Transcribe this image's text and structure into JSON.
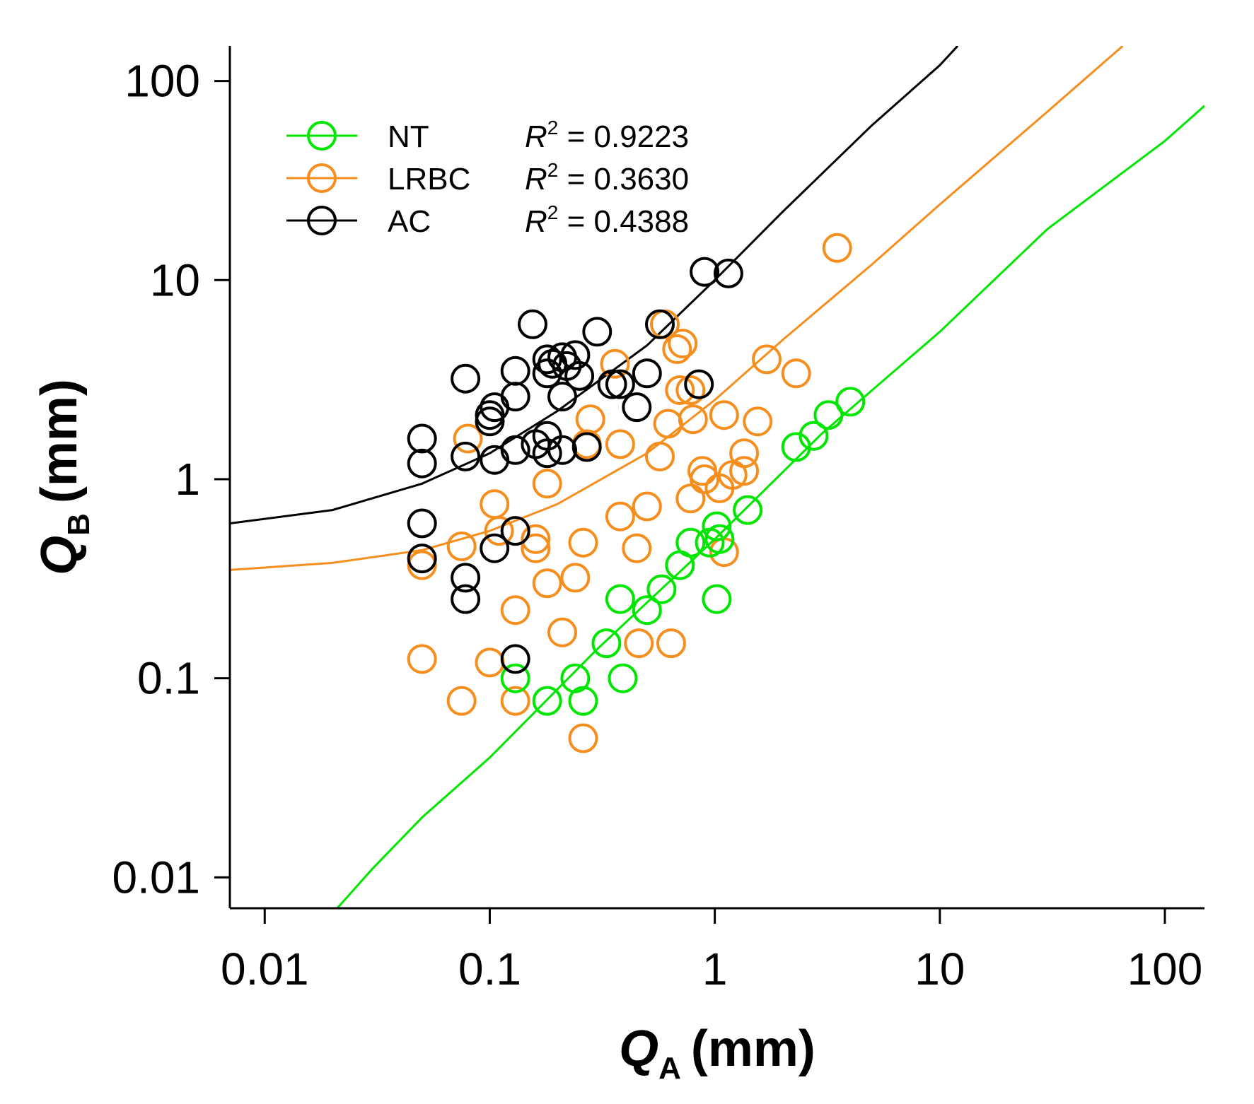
{
  "chart_data": {
    "type": "scatter",
    "scale": "log-log",
    "xlabel": {
      "main": "Q",
      "sub": "A",
      "unit": "(mm)"
    },
    "ylabel": {
      "main": "Q",
      "sub": "B",
      "unit": "(mm)"
    },
    "xlim": [
      0.007,
      150
    ],
    "ylim": [
      0.007,
      150
    ],
    "x_ticks": [
      {
        "value": 0.01,
        "label": "0.01"
      },
      {
        "value": 0.1,
        "label": "0.1"
      },
      {
        "value": 1,
        "label": "1"
      },
      {
        "value": 10,
        "label": "10"
      },
      {
        "value": 100,
        "label": "100"
      }
    ],
    "y_ticks": [
      {
        "value": 0.01,
        "label": "0.01"
      },
      {
        "value": 0.1,
        "label": "0.1"
      },
      {
        "value": 1,
        "label": "1"
      },
      {
        "value": 10,
        "label": "10"
      },
      {
        "value": 100,
        "label": "100"
      }
    ],
    "legend_position": "top-left",
    "series": [
      {
        "name": "NT",
        "color": "#00e600",
        "r2_prefix": "R",
        "r2_sup": "2",
        "r2_value": " = 0.9223",
        "fit_curve": [
          [
            0.021,
            0.007
          ],
          [
            0.03,
            0.011
          ],
          [
            0.05,
            0.02
          ],
          [
            0.1,
            0.04
          ],
          [
            0.3,
            0.14
          ],
          [
            1,
            0.5
          ],
          [
            3,
            1.7
          ],
          [
            10,
            5.5
          ],
          [
            30,
            18
          ],
          [
            100,
            50
          ],
          [
            150,
            75
          ]
        ],
        "points": [
          [
            0.13,
            0.1
          ],
          [
            0.18,
            0.077
          ],
          [
            0.24,
            0.1
          ],
          [
            0.26,
            0.077
          ],
          [
            0.33,
            0.15
          ],
          [
            0.38,
            0.25
          ],
          [
            0.39,
            0.1
          ],
          [
            0.5,
            0.22
          ],
          [
            0.58,
            0.28
          ],
          [
            0.7,
            0.37
          ],
          [
            0.78,
            0.48
          ],
          [
            0.95,
            0.48
          ],
          [
            1.02,
            0.58
          ],
          [
            1.05,
            0.5
          ],
          [
            1.02,
            0.25
          ],
          [
            1.4,
            0.7
          ],
          [
            2.3,
            1.45
          ],
          [
            2.75,
            1.65
          ],
          [
            3.2,
            2.1
          ],
          [
            4.0,
            2.45
          ]
        ]
      },
      {
        "name": "LRBC",
        "color": "#f68e1e",
        "r2_prefix": "R",
        "r2_sup": "2",
        "r2_value": " = 0.3630",
        "fit_curve": [
          [
            0.007,
            0.35
          ],
          [
            0.02,
            0.38
          ],
          [
            0.05,
            0.44
          ],
          [
            0.1,
            0.55
          ],
          [
            0.2,
            0.75
          ],
          [
            0.5,
            1.35
          ],
          [
            1,
            2.5
          ],
          [
            2,
            5
          ],
          [
            5,
            12
          ],
          [
            10,
            24
          ],
          [
            30,
            70
          ],
          [
            65,
            150
          ]
        ],
        "points": [
          [
            0.05,
            0.37
          ],
          [
            0.05,
            0.125
          ],
          [
            0.075,
            0.46
          ],
          [
            0.075,
            0.077
          ],
          [
            0.08,
            1.6
          ],
          [
            0.1,
            0.12
          ],
          [
            0.105,
            0.75
          ],
          [
            0.11,
            0.55
          ],
          [
            0.13,
            0.22
          ],
          [
            0.13,
            0.077
          ],
          [
            0.16,
            0.5
          ],
          [
            0.16,
            0.45
          ],
          [
            0.18,
            0.3
          ],
          [
            0.18,
            0.95
          ],
          [
            0.21,
            0.17
          ],
          [
            0.24,
            0.32
          ],
          [
            0.26,
            0.48
          ],
          [
            0.26,
            0.05
          ],
          [
            0.27,
            1.5
          ],
          [
            0.28,
            2.0
          ],
          [
            0.36,
            3.8
          ],
          [
            0.38,
            1.5
          ],
          [
            0.38,
            0.65
          ],
          [
            0.45,
            0.45
          ],
          [
            0.46,
            0.15
          ],
          [
            0.5,
            0.73
          ],
          [
            0.57,
            1.3
          ],
          [
            0.6,
            6.0
          ],
          [
            0.62,
            1.9
          ],
          [
            0.64,
            0.15
          ],
          [
            0.68,
            4.5
          ],
          [
            0.7,
            2.8
          ],
          [
            0.72,
            4.8
          ],
          [
            0.78,
            2.8
          ],
          [
            0.78,
            0.8
          ],
          [
            0.8,
            2.0
          ],
          [
            0.88,
            1.1
          ],
          [
            0.9,
            1.0
          ],
          [
            1.05,
            0.9
          ],
          [
            1.1,
            2.1
          ],
          [
            1.1,
            0.43
          ],
          [
            1.2,
            1.05
          ],
          [
            1.35,
            1.35
          ],
          [
            1.35,
            1.1
          ],
          [
            1.55,
            1.95
          ],
          [
            1.7,
            4.0
          ],
          [
            2.3,
            3.4
          ],
          [
            3.5,
            14.5
          ]
        ]
      },
      {
        "name": "AC",
        "color": "#000000",
        "r2_prefix": "R",
        "r2_sup": "2",
        "r2_value": " = 0.4388",
        "fit_curve": [
          [
            0.007,
            0.6
          ],
          [
            0.02,
            0.7
          ],
          [
            0.05,
            0.95
          ],
          [
            0.1,
            1.35
          ],
          [
            0.2,
            2.2
          ],
          [
            0.5,
            4.7
          ],
          [
            1,
            10
          ],
          [
            2,
            22
          ],
          [
            5,
            60
          ],
          [
            10,
            120
          ],
          [
            12,
            150
          ]
        ],
        "points": [
          [
            0.05,
            1.6
          ],
          [
            0.05,
            1.2
          ],
          [
            0.05,
            0.6
          ],
          [
            0.05,
            0.4
          ],
          [
            0.078,
            3.2
          ],
          [
            0.078,
            1.3
          ],
          [
            0.078,
            0.32
          ],
          [
            0.078,
            0.25
          ],
          [
            0.1,
            2.1
          ],
          [
            0.1,
            1.95
          ],
          [
            0.105,
            2.3
          ],
          [
            0.105,
            1.25
          ],
          [
            0.105,
            0.45
          ],
          [
            0.13,
            3.5
          ],
          [
            0.13,
            2.6
          ],
          [
            0.13,
            1.4
          ],
          [
            0.13,
            0.55
          ],
          [
            0.13,
            0.125
          ],
          [
            0.155,
            6.0
          ],
          [
            0.16,
            1.5
          ],
          [
            0.18,
            4.0
          ],
          [
            0.18,
            3.4
          ],
          [
            0.18,
            1.65
          ],
          [
            0.18,
            1.35
          ],
          [
            0.19,
            3.8
          ],
          [
            0.21,
            4.1
          ],
          [
            0.21,
            2.6
          ],
          [
            0.21,
            1.4
          ],
          [
            0.22,
            3.7
          ],
          [
            0.24,
            4.2
          ],
          [
            0.25,
            3.3
          ],
          [
            0.27,
            1.45
          ],
          [
            0.3,
            5.5
          ],
          [
            0.35,
            3.0
          ],
          [
            0.38,
            3.0
          ],
          [
            0.45,
            2.3
          ],
          [
            0.5,
            3.4
          ],
          [
            0.57,
            6.0
          ],
          [
            0.85,
            3.0
          ],
          [
            0.9,
            11.0
          ],
          [
            1.15,
            10.8
          ]
        ]
      }
    ]
  }
}
